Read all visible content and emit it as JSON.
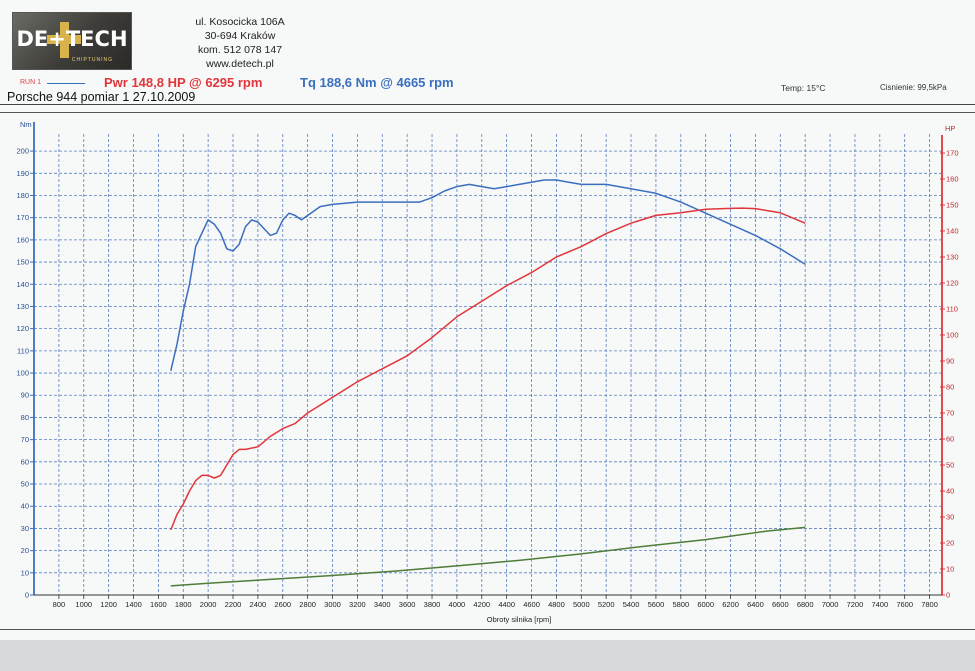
{
  "header": {
    "logo_text": "DE+TECH",
    "logo_sub": "CHIPTUNING",
    "address_lines": [
      "ul. Kosocicka 106A",
      "30-694 Kraków",
      "kom. 512 078 147",
      "www.detech.pl"
    ]
  },
  "legend": {
    "run_label": "RUN 1",
    "power_text": "Pwr 148,8 HP @ 6295 rpm",
    "torque_text": "Tq 188,6 Nm @ 4665 rpm",
    "temp_text": "Temp: 15°C",
    "pressure_text": "Cisnienie: 99,5kPa"
  },
  "title": "Porsche 944 pomiar 1 27.10.2009",
  "colors": {
    "torque": "#3a6fc0",
    "power": "#e0363b",
    "loss": "#4f7d3a",
    "grid": "#5a7fbf",
    "left_axis": "#3a6fc0",
    "right_axis": "#e0363b"
  },
  "chart_data": {
    "type": "line",
    "xlabel": "Obroty silnika [rpm]",
    "ylabel_left": "Nm",
    "ylabel_right": "HP",
    "xlim": [
      600,
      7900
    ],
    "ylim_left": [
      0,
      205
    ],
    "ylim_right": [
      0,
      175
    ],
    "x_ticks": [
      800,
      1000,
      1200,
      1400,
      1600,
      1800,
      2000,
      2200,
      2400,
      2600,
      2800,
      3000,
      3200,
      3400,
      3600,
      3800,
      4000,
      4200,
      4400,
      4600,
      4800,
      5000,
      5200,
      5400,
      5600,
      5800,
      6000,
      6200,
      6400,
      6600,
      6800,
      7000,
      7200,
      7400,
      7600,
      7800
    ],
    "y_ticks_left": [
      0,
      10,
      20,
      30,
      40,
      50,
      60,
      70,
      80,
      90,
      100,
      110,
      120,
      130,
      140,
      150,
      160,
      170,
      180,
      190,
      200
    ],
    "y_ticks_right": [
      0,
      10,
      20,
      30,
      40,
      50,
      60,
      70,
      80,
      90,
      100,
      110,
      120,
      130,
      140,
      150,
      160,
      170
    ],
    "grid": true,
    "series": [
      {
        "name": "Tq",
        "axis": "left",
        "x": [
          1700,
          1750,
          1800,
          1850,
          1900,
          1950,
          2000,
          2050,
          2100,
          2150,
          2200,
          2250,
          2300,
          2350,
          2400,
          2450,
          2500,
          2550,
          2600,
          2650,
          2700,
          2750,
          2800,
          2900,
          3000,
          3200,
          3400,
          3600,
          3700,
          3800,
          3900,
          4000,
          4100,
          4200,
          4300,
          4400,
          4500,
          4600,
          4700,
          4800,
          4900,
          5000,
          5200,
          5400,
          5600,
          5800,
          6000,
          6200,
          6400,
          6600,
          6800
        ],
        "values": [
          101,
          113,
          128,
          140,
          157,
          163,
          169,
          167,
          163,
          156,
          155,
          158,
          166,
          169,
          168,
          165,
          162,
          163,
          169,
          172,
          171,
          169,
          171,
          175,
          176,
          177,
          177,
          177,
          177,
          179,
          182,
          184,
          185,
          184,
          183,
          184,
          185,
          186,
          187,
          187,
          186,
          185,
          185,
          183,
          181,
          177,
          172,
          167,
          162,
          156,
          149
        ]
      },
      {
        "name": "Pwr",
        "axis": "right",
        "x": [
          1700,
          1750,
          1800,
          1850,
          1900,
          1950,
          2000,
          2050,
          2100,
          2150,
          2200,
          2250,
          2300,
          2400,
          2500,
          2600,
          2700,
          2800,
          3000,
          3200,
          3400,
          3600,
          3800,
          4000,
          4200,
          4400,
          4600,
          4800,
          5000,
          5200,
          5400,
          5600,
          5800,
          6000,
          6200,
          6295,
          6400,
          6600,
          6800
        ],
        "values": [
          25,
          31,
          35,
          40,
          44,
          46,
          46,
          45,
          46,
          50,
          54,
          56,
          56,
          57,
          61,
          64,
          66,
          70,
          76,
          82,
          87,
          92,
          99,
          107,
          113,
          119,
          124,
          130,
          134,
          139,
          143,
          146,
          147,
          148.4,
          148.7,
          148.8,
          148.6,
          147,
          143
        ]
      },
      {
        "name": "Loss",
        "axis": "right",
        "x": [
          1700,
          2000,
          2500,
          3000,
          3500,
          4000,
          4500,
          5000,
          5500,
          6000,
          6500,
          6800
        ],
        "values": [
          3.5,
          4.5,
          6.0,
          7.5,
          9.2,
          11.2,
          13.3,
          15.8,
          18.7,
          21.3,
          24.6,
          26
        ]
      }
    ]
  }
}
